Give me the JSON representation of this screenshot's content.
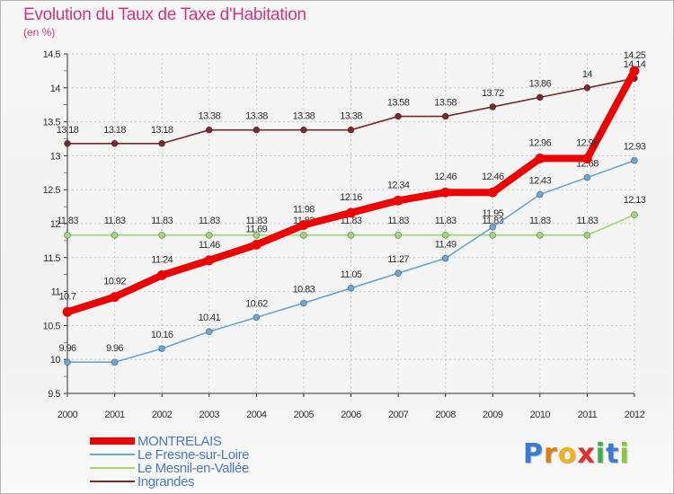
{
  "title": "Evolution du Taux de Taxe d'Habitation",
  "unit_label": "(en %)",
  "logo": {
    "letters": [
      {
        "ch": "P",
        "color": "#3a7bd5"
      },
      {
        "ch": "r",
        "color": "#e07b1a"
      },
      {
        "ch": "o",
        "color": "#f2b01e"
      },
      {
        "ch": "x",
        "color": "#e0302a"
      },
      {
        "ch": "i",
        "color": "#3fae49"
      },
      {
        "ch": "t",
        "color": "#3a7bd5"
      },
      {
        "ch": "i",
        "color": "#8cc63f"
      }
    ]
  },
  "chart_data": {
    "type": "line",
    "title": "Evolution du Taux de Taxe d'Habitation",
    "ylabel": "(en %)",
    "xlabel": "",
    "ylim": [
      9.5,
      14.5
    ],
    "yticks": [
      "9.5",
      "10",
      "10.5",
      "11",
      "11.5",
      "12",
      "12.5",
      "13",
      "13.5",
      "14",
      "14.5"
    ],
    "x": [
      "2000",
      "2001",
      "2002",
      "2003",
      "2004",
      "2005",
      "2006",
      "2007",
      "2008",
      "2009",
      "2010",
      "2011",
      "2012"
    ],
    "grid": true,
    "legend_position": "bottom-left",
    "series": [
      {
        "name": "MONTRELAIS",
        "color": "#ee0000",
        "values": [
          10.7,
          10.92,
          11.24,
          11.46,
          11.69,
          11.98,
          12.16,
          12.34,
          12.46,
          12.46,
          12.96,
          12.96,
          14.25
        ],
        "labels": [
          "10.7",
          "10.92",
          "11.24",
          "11.46",
          "11.69",
          "11.98",
          "12.16",
          "12.34",
          "12.46",
          "12.46",
          "12.96",
          "12.96",
          "14.25"
        ]
      },
      {
        "name": "Le Fresne-sur-Loire",
        "color": "#6aa6d6",
        "values": [
          9.96,
          9.96,
          10.16,
          10.41,
          10.62,
          10.83,
          11.05,
          11.27,
          11.49,
          11.95,
          12.43,
          12.68,
          12.93
        ],
        "labels": [
          "9.96",
          "9.96",
          "10.16",
          "10.41",
          "10.62",
          "10.83",
          "11.05",
          "11.27",
          "11.49",
          "11.95",
          "12.43",
          "12.68",
          "12.93"
        ]
      },
      {
        "name": "Le Mesnil-en-Vallée",
        "color": "#9ed872",
        "values": [
          11.83,
          11.83,
          11.83,
          11.83,
          11.83,
          11.83,
          11.83,
          11.83,
          11.83,
          11.83,
          11.83,
          11.83,
          12.13
        ],
        "labels": [
          "11.83",
          "11.83",
          "11.83",
          "11.83",
          "11.83",
          "11.83",
          "11.83",
          "11.83",
          "11.83",
          "11.83",
          "11.83",
          "11.83",
          "12.13"
        ]
      },
      {
        "name": "Ingrandes",
        "color": "#7a2a2a",
        "values": [
          13.18,
          13.18,
          13.18,
          13.38,
          13.38,
          13.38,
          13.38,
          13.58,
          13.58,
          13.72,
          13.86,
          14.0,
          14.14
        ],
        "labels": [
          "13.18",
          "13.18",
          "13.18",
          "13.38",
          "13.38",
          "13.38",
          "13.38",
          "13.58",
          "13.58",
          "13.72",
          "13.86",
          "14",
          "14.14"
        ]
      }
    ]
  }
}
